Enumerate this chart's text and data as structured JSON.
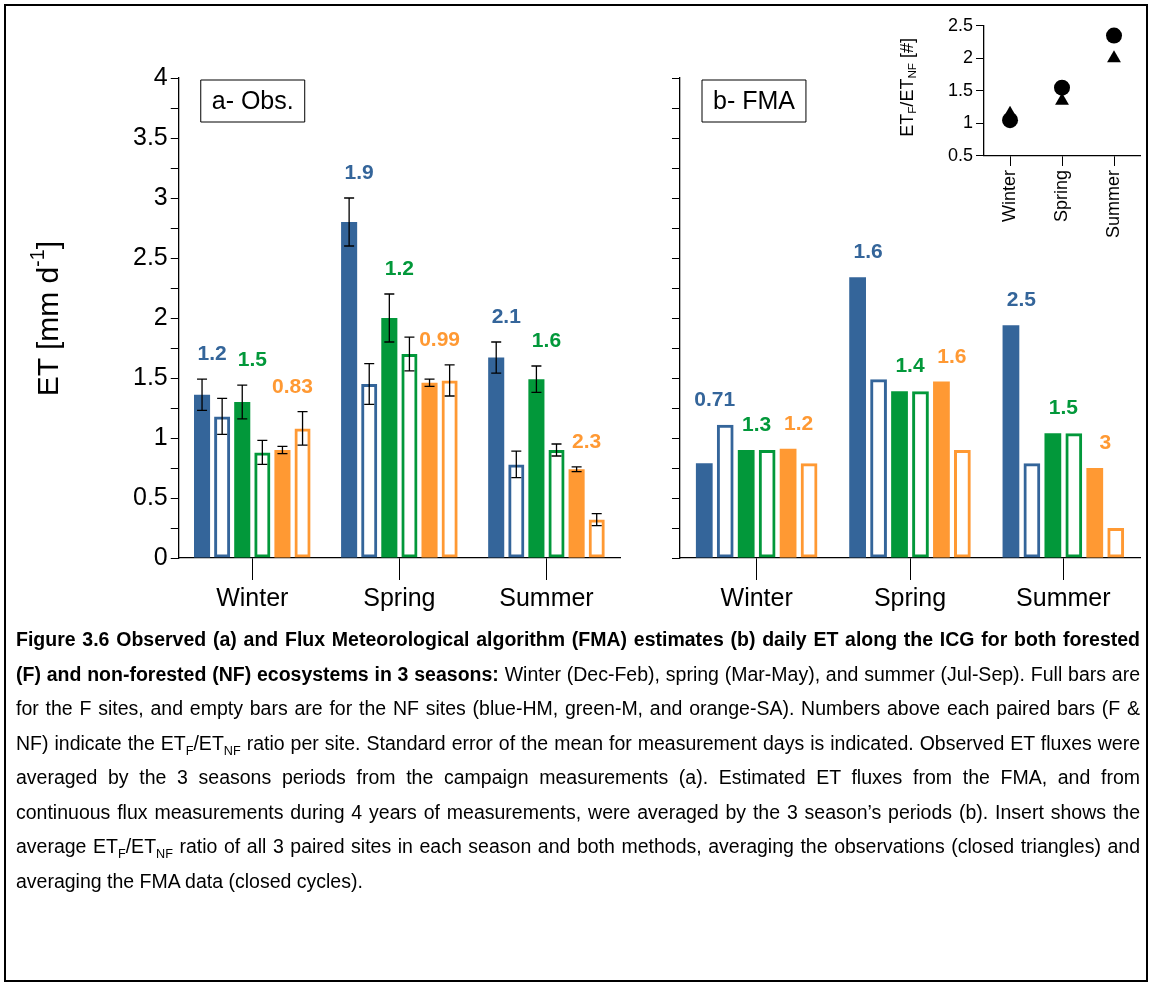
{
  "chart_data": [
    {
      "type": "bar",
      "title": "a- Obs.",
      "ylabel": "ET [mm d$^{-1}$]",
      "categories": [
        "Winter",
        "Spring",
        "Summer"
      ],
      "ylim": [
        0,
        4
      ],
      "yticks": [
        0,
        {
          "value": 0.25,
          "label": null
        },
        0.5,
        {
          "value": 0.75,
          "label": null
        },
        1,
        {
          "value": 1.25,
          "label": null
        },
        1.5,
        {
          "value": 1.75,
          "label": null
        },
        2,
        {
          "value": 2.25,
          "label": null
        },
        2.5,
        {
          "value": 2.75,
          "label": null
        },
        3,
        {
          "value": 3.25,
          "label": null
        },
        3.5,
        {
          "value": 3.75,
          "label": null
        },
        4
      ],
      "series": [
        {
          "color": "#34659a",
          "values": [
            1.36,
            2.8,
            1.67
          ],
          "errors": [
            0.13,
            0.2,
            0.13
          ]
        },
        {
          "color": "#34659a",
          "values": [
            1.18,
            1.45,
            0.78
          ],
          "errors": [
            0.15,
            0.17,
            0.11
          ]
        },
        {
          "color": "#02983a",
          "values": [
            1.3,
            2.0,
            1.49
          ],
          "errors": [
            0.14,
            0.2,
            0.11
          ]
        },
        {
          "color": "#02983a",
          "values": [
            0.88,
            1.7,
            0.9
          ],
          "errors": [
            0.1,
            0.14,
            0.05
          ]
        },
        {
          "color": "#ff9933",
          "values": [
            0.9,
            1.46,
            0.74
          ],
          "errors": [
            0.03,
            0.03,
            0.02
          ]
        },
        {
          "color": "#ff9933",
          "values": [
            1.08,
            1.48,
            0.32
          ],
          "errors": [
            0.14,
            0.13,
            0.05
          ]
        }
      ],
      "annotations": [
        "1.2",
        "1.5",
        "0.83",
        "1.9",
        "1.2",
        "0.99",
        "2.1",
        "1.6",
        "2.3",
        "Figure 3.6 Observed (a) and Flux Meteorological algorithm (FMA) estimates (b) daily ET along the ICG for both forested (F) and non-forested (NF) ecosystems in 3 seasons:",
        "Winter (Dec-Feb), spring (Mar-May), and summer (Jul-Sep). Full bars are for the F sites, and empty bars are for the NF sites (blue-HM, green-M, and orange-SA). Numbers above each paired bars (F & NF) indicate the ET$_{F}$/ET$_{NF}$ ratio per site. Standard error of the mean for measurement days is indicated. Observed ET fluxes were averaged by the 3 seasons periods from the campaign measurements (a). Estimated ET fluxes from the FMA, and from continuous flux measurements during 4 years of measurements, were averaged by the 3 season’s periods (b). Insert shows the average ET$_{F}$/ET$_{NF}$ ratio of all 3 paired sites in each season and both methods, averaging the observations (closed triangles) and averaging the FMA data (closed cycles)."
      ]
    },
    {
      "type": "bar",
      "title": "b- FMA",
      "categories": [
        "Winter",
        "Spring",
        "Summer"
      ],
      "ylim": [
        0,
        4
      ],
      "tick_labels": "x",
      "yticks": [
        {
          "value": 0,
          "label": null
        },
        {
          "value": 0.25,
          "label": null
        },
        {
          "value": 0.5,
          "label": null
        },
        {
          "value": 0.75,
          "label": null
        },
        {
          "value": 1,
          "label": null
        },
        {
          "value": 1.25,
          "label": null
        },
        {
          "value": 1.5,
          "label": null
        },
        {
          "value": 1.75,
          "label": null
        },
        {
          "value": 2,
          "label": null
        },
        {
          "value": 2.25,
          "label": null
        },
        {
          "value": 2.5,
          "label": null
        },
        {
          "value": 2.75,
          "label": null
        },
        {
          "value": 3,
          "label": null
        },
        {
          "value": 3.25,
          "label": null
        },
        {
          "value": 3.5,
          "label": null
        },
        {
          "value": 3.75,
          "label": null
        },
        {
          "value": 4,
          "label": null
        }
      ],
      "series": [
        {
          "color": "#34659a",
          "values": [
            0.79,
            2.34,
            1.94
          ]
        },
        {
          "color": "#34659a",
          "values": [
            1.11,
            1.49,
            0.79
          ]
        },
        {
          "color": "#02983a",
          "values": [
            0.9,
            1.39,
            1.04
          ]
        },
        {
          "color": "#02983a",
          "values": [
            0.9,
            1.39,
            1.04
          ]
        },
        {
          "color": "#ff9933",
          "values": [
            0.91,
            1.47,
            0.75
          ]
        },
        {
          "color": "#ff9933",
          "values": [
            0.79,
            0.9,
            0.25
          ]
        }
      ],
      "annotations": [
        "0.71",
        "1.3",
        "1.2",
        "1.6",
        "1.4",
        "1.6",
        "2.5",
        "1.5",
        "3"
      ]
    },
    {
      "type": "scatter",
      "ylabel": "ET$_{F}$/ET$_{NF}$ [#]",
      "categories": [
        "Winter",
        "Spring",
        "Summer"
      ],
      "ylim": [
        0.5,
        2.5
      ],
      "yticks": [
        0.5,
        1,
        1.5,
        2,
        2.5
      ],
      "series": [
        {
          "color": "#000000",
          "marker": "triangle",
          "values": [
            1.15,
            1.35,
            2.0
          ]
        },
        {
          "color": "#000000",
          "marker": "circle",
          "values": [
            1.05,
            1.55,
            2.35
          ]
        }
      ]
    }
  ]
}
